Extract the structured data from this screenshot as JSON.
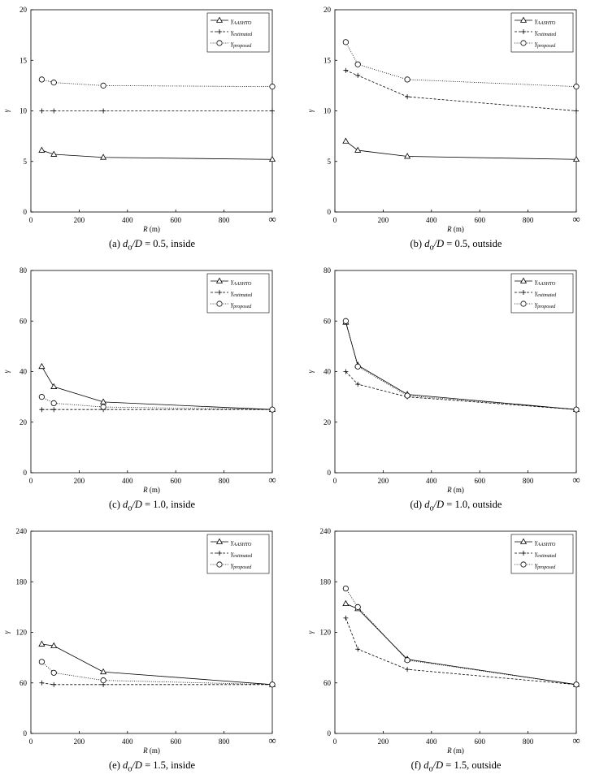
{
  "chart_data": [
    {
      "type": "line",
      "caption": {
        "prefix": "(a) ",
        "var1": "d",
        "sub": "o",
        "var2": "/D",
        "rest": " = 0.5, inside"
      },
      "xlabel": {
        "var": "R",
        "unit": " (m)"
      },
      "ylabel": "γ",
      "xlim": [
        0,
        1000
      ],
      "ylim": [
        0,
        20
      ],
      "yticks": [
        0,
        5,
        10,
        15,
        20
      ],
      "xticks": [
        "0",
        "200",
        "400",
        "600",
        "800",
        "∞"
      ],
      "legend_position": "top-right",
      "x": [
        45,
        95,
        300,
        "∞"
      ],
      "series": [
        {
          "name": "γ",
          "sub": "AASHTO",
          "style": "solid",
          "marker": "triangle",
          "values": [
            6.1,
            5.7,
            5.4,
            5.2
          ]
        },
        {
          "name": "γ",
          "sub": "estimated",
          "style": "dashed",
          "marker": "plus",
          "values": [
            10.0,
            10.0,
            10.0,
            10.0
          ]
        },
        {
          "name": "γ",
          "sub": "proposed",
          "style": "dotted",
          "marker": "circle",
          "values": [
            13.1,
            12.8,
            12.5,
            12.4
          ]
        }
      ]
    },
    {
      "type": "line",
      "caption": {
        "prefix": "(b) ",
        "var1": "d",
        "sub": "o",
        "var2": "/D",
        "rest": " = 0.5, outside"
      },
      "xlabel": {
        "var": "R",
        "unit": " (m)"
      },
      "ylabel": "γ",
      "xlim": [
        0,
        1000
      ],
      "ylim": [
        0,
        20
      ],
      "yticks": [
        0,
        5,
        10,
        15,
        20
      ],
      "xticks": [
        "0",
        "200",
        "400",
        "600",
        "800",
        "∞"
      ],
      "legend_position": "top-right",
      "x": [
        45,
        95,
        300,
        "∞"
      ],
      "series": [
        {
          "name": "γ",
          "sub": "AASHTO",
          "style": "solid",
          "marker": "triangle",
          "values": [
            7.0,
            6.1,
            5.5,
            5.2
          ]
        },
        {
          "name": "γ",
          "sub": "estimated",
          "style": "dashed",
          "marker": "plus",
          "values": [
            14.0,
            13.5,
            11.4,
            10.0
          ]
        },
        {
          "name": "γ",
          "sub": "proposed",
          "style": "dotted",
          "marker": "circle",
          "values": [
            16.8,
            14.6,
            13.1,
            12.4
          ]
        }
      ]
    },
    {
      "type": "line",
      "caption": {
        "prefix": "(c) ",
        "var1": "d",
        "sub": "o",
        "var2": "/D",
        "rest": " = 1.0, inside"
      },
      "xlabel": {
        "var": "R",
        "unit": " (m)"
      },
      "ylabel": "γ",
      "xlim": [
        0,
        1000
      ],
      "ylim": [
        0,
        80
      ],
      "yticks": [
        0,
        20,
        40,
        60,
        80
      ],
      "xticks": [
        "0",
        "200",
        "400",
        "600",
        "800",
        "∞"
      ],
      "legend_position": "top-right",
      "x": [
        45,
        95,
        300,
        "∞"
      ],
      "series": [
        {
          "name": "γ",
          "sub": "AASHTO",
          "style": "solid",
          "marker": "triangle",
          "values": [
            42.0,
            34.0,
            28.0,
            25.0
          ]
        },
        {
          "name": "γ",
          "sub": "estimated",
          "style": "dashed",
          "marker": "plus",
          "values": [
            25.0,
            25.0,
            25.0,
            25.0
          ]
        },
        {
          "name": "γ",
          "sub": "proposed",
          "style": "dotted",
          "marker": "circle",
          "values": [
            30.0,
            27.5,
            26.0,
            25.0
          ]
        }
      ]
    },
    {
      "type": "line",
      "caption": {
        "prefix": "(d) ",
        "var1": "d",
        "sub": "o",
        "var2": "/D",
        "rest": " = 1.0, outside"
      },
      "xlabel": {
        "var": "R",
        "unit": " (m)"
      },
      "ylabel": "γ",
      "xlim": [
        0,
        1000
      ],
      "ylim": [
        0,
        80
      ],
      "yticks": [
        0,
        20,
        40,
        60,
        80
      ],
      "xticks": [
        "0",
        "200",
        "400",
        "600",
        "800",
        "∞"
      ],
      "legend_position": "top-right",
      "x": [
        45,
        95,
        300,
        "∞"
      ],
      "series": [
        {
          "name": "γ",
          "sub": "AASHTO",
          "style": "solid",
          "marker": "triangle",
          "values": [
            59.5,
            42.5,
            31.0,
            25.0
          ]
        },
        {
          "name": "γ",
          "sub": "estimated",
          "style": "dashed",
          "marker": "plus",
          "values": [
            40.0,
            35.0,
            30.0,
            25.0
          ]
        },
        {
          "name": "γ",
          "sub": "proposed",
          "style": "dotted",
          "marker": "circle",
          "values": [
            60.0,
            42.0,
            30.5,
            25.0
          ]
        }
      ]
    },
    {
      "type": "line",
      "caption": {
        "prefix": "(e) ",
        "var1": "d",
        "sub": "o",
        "var2": "/D",
        "rest": " = 1.5, inside"
      },
      "xlabel": {
        "var": "R",
        "unit": " (m)"
      },
      "ylabel": "γ",
      "xlim": [
        0,
        1000
      ],
      "ylim": [
        0,
        240
      ],
      "yticks": [
        0,
        60,
        120,
        180,
        240
      ],
      "xticks": [
        "0",
        "200",
        "400",
        "600",
        "800",
        "∞"
      ],
      "legend_position": "top-right",
      "x": [
        45,
        95,
        300,
        "∞"
      ],
      "series": [
        {
          "name": "γ",
          "sub": "AASHTO",
          "style": "solid",
          "marker": "triangle",
          "values": [
            106.0,
            104.0,
            73.0,
            58.0
          ]
        },
        {
          "name": "γ",
          "sub": "estimated",
          "style": "dashed",
          "marker": "plus",
          "values": [
            60.0,
            58.0,
            58.0,
            58.0
          ]
        },
        {
          "name": "γ",
          "sub": "proposed",
          "style": "dotted",
          "marker": "circle",
          "values": [
            85.0,
            72.0,
            63.0,
            58.0
          ]
        }
      ]
    },
    {
      "type": "line",
      "caption": {
        "prefix": "(f) ",
        "var1": "d",
        "sub": "o",
        "var2": "/D",
        "rest": " = 1.5, outside"
      },
      "xlabel": {
        "var": "R",
        "unit": " (m)"
      },
      "ylabel": "γ",
      "xlim": [
        0,
        1000
      ],
      "ylim": [
        0,
        240
      ],
      "yticks": [
        0,
        60,
        120,
        180,
        240
      ],
      "xticks": [
        "0",
        "200",
        "400",
        "600",
        "800",
        "∞"
      ],
      "legend_position": "top-right",
      "x": [
        45,
        95,
        300,
        "∞"
      ],
      "series": [
        {
          "name": "γ",
          "sub": "AASHTO",
          "style": "solid",
          "marker": "triangle",
          "values": [
            154.0,
            148.0,
            88.0,
            58.0
          ]
        },
        {
          "name": "γ",
          "sub": "estimated",
          "style": "dashed",
          "marker": "plus",
          "values": [
            137.0,
            100.0,
            76.0,
            58.0
          ]
        },
        {
          "name": "γ",
          "sub": "proposed",
          "style": "dotted",
          "marker": "circle",
          "values": [
            172.0,
            150.0,
            87.0,
            58.0
          ]
        }
      ]
    }
  ]
}
